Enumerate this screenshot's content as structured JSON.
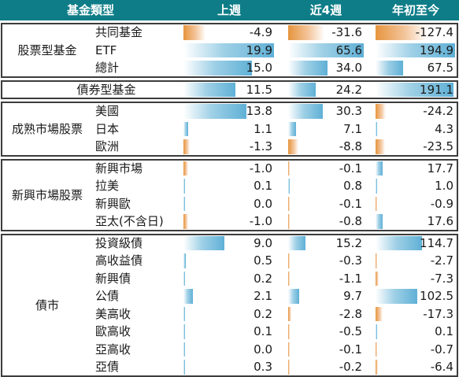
{
  "headers": {
    "category": "基金類型",
    "week": "上週",
    "four_weeks": "近4週",
    "ytd": "年初至今"
  },
  "colors": {
    "header_bg": "#0e7d88",
    "positive_bar": "#5fb0d6",
    "negative_bar": "#e6953e"
  },
  "chart_data": {
    "type": "table",
    "columns": [
      "上週",
      "近4週",
      "年初至今"
    ],
    "groups": [
      {
        "name": "股票型基金",
        "rows": [
          {
            "label": "共同基金",
            "week": -4.9,
            "four_weeks": -31.6,
            "ytd": -127.4
          },
          {
            "label": "ETF",
            "week": 19.9,
            "four_weeks": 65.6,
            "ytd": 194.9
          },
          {
            "label": "總計",
            "week": 15.0,
            "four_weeks": 34.0,
            "ytd": 67.5
          }
        ]
      },
      {
        "name": "債券型基金",
        "rows": [
          {
            "label": "",
            "week": 11.5,
            "four_weeks": 24.2,
            "ytd": 191.1
          }
        ]
      },
      {
        "name": "成熟市場股票",
        "rows": [
          {
            "label": "美國",
            "week": 13.8,
            "four_weeks": 30.3,
            "ytd": -24.2
          },
          {
            "label": "日本",
            "week": 1.1,
            "four_weeks": 7.1,
            "ytd": 4.3
          },
          {
            "label": "歐洲",
            "week": -1.3,
            "four_weeks": -8.8,
            "ytd": -23.5
          }
        ]
      },
      {
        "name": "新興市場股票",
        "rows": [
          {
            "label": "新興市場",
            "week": -1.0,
            "four_weeks": -0.1,
            "ytd": 17.7
          },
          {
            "label": "拉美",
            "week": 0.1,
            "four_weeks": 0.8,
            "ytd": 1.0
          },
          {
            "label": "新興歐",
            "week": 0.0,
            "four_weeks": -0.1,
            "ytd": -0.9
          },
          {
            "label": "亞太(不含日)",
            "week": -1.0,
            "four_weeks": -0.8,
            "ytd": 17.6
          }
        ]
      },
      {
        "name": "債市",
        "rows": [
          {
            "label": "投資級債",
            "week": 9.0,
            "four_weeks": 15.2,
            "ytd": 114.7
          },
          {
            "label": "高收益債",
            "week": 0.5,
            "four_weeks": -0.3,
            "ytd": -2.7
          },
          {
            "label": "新興債",
            "week": 0.2,
            "four_weeks": -1.1,
            "ytd": -7.3
          },
          {
            "label": "公債",
            "week": 2.1,
            "four_weeks": 9.7,
            "ytd": 102.5
          },
          {
            "label": "美高收",
            "week": 0.2,
            "four_weeks": -2.8,
            "ytd": -17.3
          },
          {
            "label": "歐高收",
            "week": 0.1,
            "four_weeks": -0.5,
            "ytd": 0.1
          },
          {
            "label": "亞高收",
            "week": 0.0,
            "four_weeks": -0.1,
            "ytd": -0.7
          },
          {
            "label": "亞債",
            "week": 0.3,
            "four_weeks": -0.2,
            "ytd": -6.4
          }
        ]
      }
    ]
  }
}
